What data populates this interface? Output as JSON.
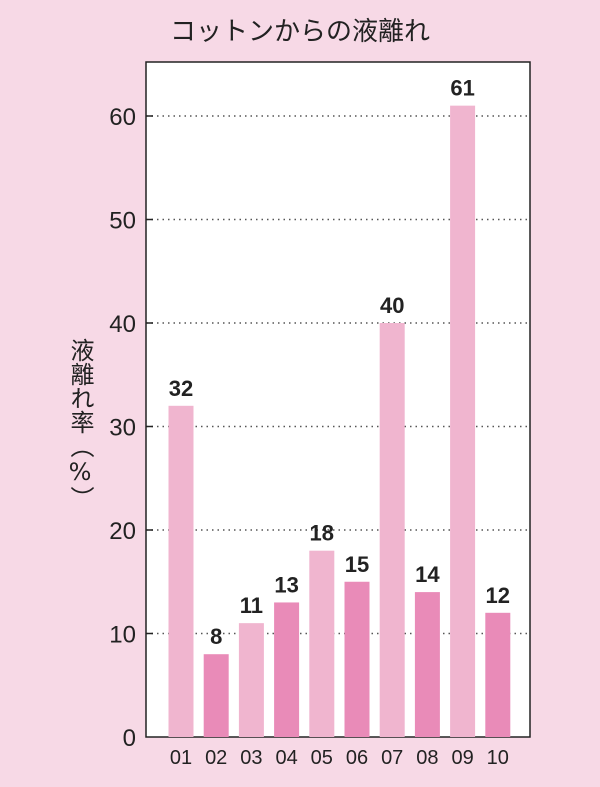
{
  "chart_data": {
    "type": "bar",
    "title": "コットンからの液離れ",
    "ylabel": "液離れ率（%）",
    "xlabel": "",
    "categories": [
      "01",
      "02",
      "03",
      "04",
      "05",
      "06",
      "07",
      "08",
      "09",
      "10"
    ],
    "values": [
      32,
      8,
      11,
      13,
      18,
      15,
      40,
      14,
      61,
      12
    ],
    "ylim": [
      0,
      60
    ],
    "yticks": [
      0,
      10,
      20,
      30,
      40,
      50,
      60
    ],
    "grid": true,
    "colors": {
      "page_background": "#f7d9e6",
      "plot_background": "#ffffff",
      "bar_light": "#f0b5cf",
      "bar_dark": "#e98bb8",
      "axis": "#222222",
      "grid": "#555555"
    }
  }
}
